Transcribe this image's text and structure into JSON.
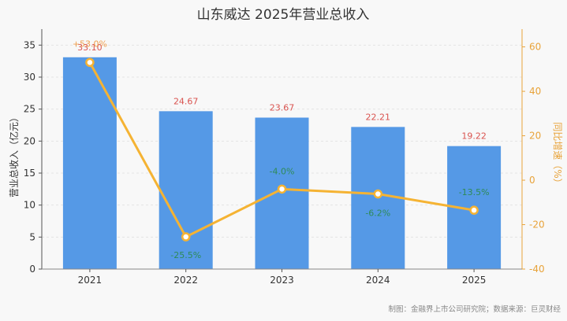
{
  "chart_data": {
    "type": "bar",
    "title": "山东威达 2025年营业总收入",
    "categories": [
      "2021",
      "2022",
      "2023",
      "2024",
      "2025"
    ],
    "series": [
      {
        "name": "",
        "type": "bar",
        "values": [
          33.1,
          24.67,
          23.67,
          22.21,
          19.22
        ],
        "labels": [
          "33.10",
          "24.67",
          "23.67",
          "22.21",
          "19.22"
        ]
      },
      {
        "name": "",
        "type": "line",
        "axis": "right",
        "values": [
          53.0,
          -25.5,
          -4.0,
          -6.2,
          -13.5
        ],
        "labels": [
          "+53.0%",
          "-25.5%",
          "-4.0%",
          "-6.2%",
          "-13.5%"
        ]
      }
    ],
    "ylabel": "营业总收入（亿元）",
    "y2label": "同比增速（%）",
    "ylim": [
      0,
      37.5
    ],
    "y2lim": [
      -40,
      68
    ],
    "yticks": [
      0,
      5,
      10,
      15,
      20,
      25,
      30,
      35
    ],
    "y2ticks": [
      -40,
      -20,
      0,
      20,
      40,
      60
    ],
    "grid": true,
    "colors": {
      "bar": "#5599e6",
      "line": "#f5b333",
      "bar_label": "#d9534f",
      "pct_label": "#2e8b57"
    }
  },
  "footer": "制图：金融界上市公司研究院；数据来源：巨灵财经"
}
